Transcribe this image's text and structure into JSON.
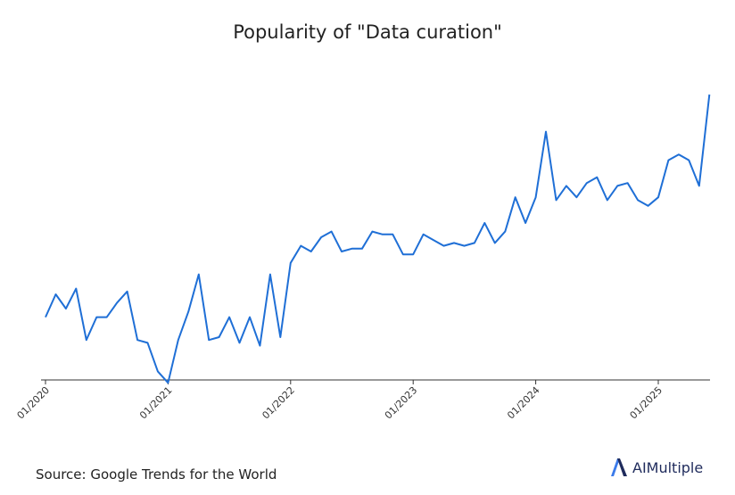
{
  "chart_data": {
    "type": "line",
    "title": "Popularity of \"Data curation\"",
    "xlabel": "",
    "ylabel": "",
    "ylim": [
      0,
      100
    ],
    "tick_labels": [
      "01/2020",
      "01/2021",
      "01/2022",
      "01/2023",
      "01/2024",
      "01/2025"
    ],
    "tick_month_index": [
      0,
      12,
      24,
      36,
      48,
      60
    ],
    "series": [
      {
        "name": "Data curation",
        "color": "#1f6fd6",
        "values": [
          27,
          35,
          30,
          37,
          19,
          27,
          27,
          32,
          36,
          19,
          18,
          8,
          4,
          19,
          29,
          42,
          19,
          20,
          27,
          18,
          27,
          17,
          42,
          20,
          46,
          52,
          50,
          55,
          57,
          50,
          51,
          51,
          57,
          56,
          56,
          49,
          49,
          56,
          54,
          52,
          53,
          52,
          53,
          60,
          53,
          57,
          69,
          60,
          69,
          92,
          68,
          73,
          69,
          74,
          76,
          68,
          73,
          74,
          68,
          66,
          69,
          82,
          84,
          82,
          73,
          105
        ]
      }
    ]
  },
  "source": "Source: Google Trends for the World",
  "brand": {
    "name": "AIMultiple",
    "icon": "aimultiple-logo-icon"
  }
}
